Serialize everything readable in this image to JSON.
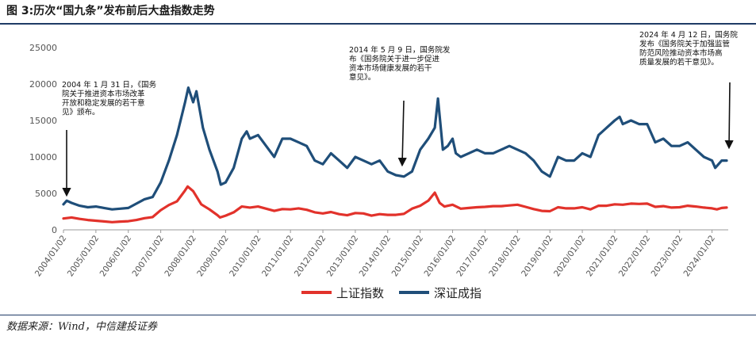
{
  "header": {
    "title": "图 3:历次“国九条”发布前后大盘指数走势"
  },
  "footer": {
    "source": "数据来源：Wind，中信建投证券"
  },
  "colors": {
    "sh": "#e2322b",
    "sz": "#1f4e79",
    "axis": "#999999",
    "text": "#555555",
    "header_rule": "#1f3b66"
  },
  "chart_data": {
    "type": "line",
    "title": "历次“国九条”发布前后大盘指数走势",
    "xlabel": "",
    "ylabel": "",
    "ylim": [
      0,
      25000
    ],
    "yticks": [
      0,
      5000,
      10000,
      15000,
      20000,
      25000
    ],
    "ytick_labels": [
      "0",
      "5000",
      "10000",
      "15000",
      "20000",
      "25000"
    ],
    "xlim": [
      2004.0,
      2024.5
    ],
    "xticks": [
      2004,
      2005,
      2006,
      2007,
      2008,
      2009,
      2010,
      2011,
      2012,
      2013,
      2014,
      2015,
      2016,
      2017,
      2018,
      2019,
      2020,
      2021,
      2022,
      2023,
      2024
    ],
    "xtick_labels": [
      "2004/01/02",
      "2005/01/02",
      "2006/01/02",
      "2007/01/02",
      "2008/01/02",
      "2009/01/02",
      "2010/01/02",
      "2011/01/02",
      "2012/01/02",
      "2013/01/02",
      "2014/01/02",
      "2015/01/02",
      "2016/01/02",
      "2017/01/02",
      "2018/01/02",
      "2019/01/02",
      "2020/01/02",
      "2021/01/02",
      "2022/01/02",
      "2023/01/02",
      "2024/01/02"
    ],
    "grid": false,
    "legend_position": "bottom",
    "series": [
      {
        "name": "上证指数",
        "x": [
          2004.0,
          2004.25,
          2004.5,
          2004.75,
          2005.0,
          2005.25,
          2005.5,
          2005.75,
          2006.0,
          2006.25,
          2006.5,
          2006.75,
          2007.0,
          2007.25,
          2007.5,
          2007.75,
          2007.83,
          2008.0,
          2008.25,
          2008.5,
          2008.75,
          2008.83,
          2009.0,
          2009.25,
          2009.5,
          2009.75,
          2010.0,
          2010.25,
          2010.5,
          2010.75,
          2011.0,
          2011.25,
          2011.5,
          2011.75,
          2012.0,
          2012.25,
          2012.5,
          2012.75,
          2013.0,
          2013.25,
          2013.5,
          2013.75,
          2014.0,
          2014.25,
          2014.5,
          2014.75,
          2015.0,
          2015.25,
          2015.45,
          2015.6,
          2015.75,
          2016.0,
          2016.25,
          2016.5,
          2016.75,
          2017.0,
          2017.25,
          2017.5,
          2017.75,
          2018.0,
          2018.25,
          2018.5,
          2018.75,
          2019.0,
          2019.25,
          2019.5,
          2019.75,
          2020.0,
          2020.25,
          2020.5,
          2020.75,
          2021.0,
          2021.25,
          2021.5,
          2021.75,
          2022.0,
          2022.25,
          2022.5,
          2022.75,
          2023.0,
          2023.25,
          2023.5,
          2023.75,
          2024.0,
          2024.15,
          2024.3,
          2024.45
        ],
        "values": [
          1550,
          1700,
          1500,
          1350,
          1250,
          1150,
          1050,
          1130,
          1180,
          1350,
          1600,
          1750,
          2700,
          3400,
          3900,
          5400,
          5950,
          5300,
          3500,
          2800,
          2000,
          1700,
          1950,
          2400,
          3200,
          3050,
          3200,
          2900,
          2600,
          2850,
          2800,
          2950,
          2750,
          2400,
          2250,
          2450,
          2150,
          2000,
          2300,
          2250,
          1950,
          2150,
          2050,
          2050,
          2200,
          2900,
          3300,
          4000,
          5100,
          3700,
          3200,
          3450,
          2900,
          3000,
          3100,
          3150,
          3250,
          3250,
          3350,
          3450,
          3150,
          2850,
          2600,
          2550,
          3100,
          2950,
          2950,
          3100,
          2800,
          3300,
          3300,
          3500,
          3450,
          3600,
          3550,
          3600,
          3150,
          3250,
          3050,
          3100,
          3300,
          3200,
          3050,
          2950,
          2800,
          3000,
          3050
        ]
      },
      {
        "name": "深证成指",
        "x": [
          2004.0,
          2004.1,
          2004.25,
          2004.5,
          2004.75,
          2005.0,
          2005.25,
          2005.5,
          2005.75,
          2006.0,
          2006.25,
          2006.5,
          2006.75,
          2007.0,
          2007.25,
          2007.5,
          2007.75,
          2007.85,
          2008.0,
          2008.1,
          2008.3,
          2008.5,
          2008.75,
          2008.85,
          2009.0,
          2009.25,
          2009.5,
          2009.65,
          2009.75,
          2010.0,
          2010.25,
          2010.5,
          2010.75,
          2011.0,
          2011.25,
          2011.5,
          2011.75,
          2012.0,
          2012.25,
          2012.5,
          2012.75,
          2013.0,
          2013.25,
          2013.5,
          2013.75,
          2014.0,
          2014.25,
          2014.5,
          2014.75,
          2015.0,
          2015.25,
          2015.45,
          2015.55,
          2015.7,
          2015.85,
          2016.0,
          2016.1,
          2016.25,
          2016.5,
          2016.75,
          2017.0,
          2017.25,
          2017.5,
          2017.75,
          2018.0,
          2018.25,
          2018.5,
          2018.75,
          2019.0,
          2019.25,
          2019.5,
          2019.75,
          2020.0,
          2020.25,
          2020.5,
          2020.75,
          2021.0,
          2021.15,
          2021.25,
          2021.5,
          2021.75,
          2022.0,
          2022.25,
          2022.5,
          2022.75,
          2023.0,
          2023.25,
          2023.5,
          2023.75,
          2024.0,
          2024.1,
          2024.2,
          2024.3,
          2024.45
        ],
        "values": [
          3500,
          4000,
          3700,
          3300,
          3100,
          3200,
          3000,
          2800,
          2900,
          3000,
          3600,
          4200,
          4500,
          6500,
          9500,
          13000,
          17500,
          19500,
          17500,
          19000,
          14000,
          11000,
          8000,
          6200,
          6500,
          8500,
          12500,
          13500,
          12500,
          13000,
          11500,
          10000,
          12500,
          12500,
          12000,
          11500,
          9500,
          9000,
          10500,
          9500,
          8500,
          10000,
          9500,
          9000,
          9500,
          8000,
          7500,
          7300,
          8000,
          11000,
          12500,
          14000,
          18000,
          11000,
          11500,
          12500,
          10500,
          10000,
          10500,
          11000,
          10500,
          10500,
          11000,
          11500,
          11000,
          10500,
          9500,
          8000,
          7300,
          10000,
          9500,
          9500,
          10500,
          10000,
          13000,
          14000,
          15000,
          15500,
          14500,
          15000,
          14500,
          14500,
          12000,
          12500,
          11500,
          11500,
          12000,
          11000,
          10000,
          9500,
          8500,
          9000,
          9500,
          9500
        ]
      }
    ]
  },
  "annotations": [
    {
      "id": "ann-2004",
      "lines": [
        "2004 年 1 月 31 日，《国务",
        "院关于推进资本市场改革",
        "开放和稳定发展的若干意",
        "见》颁布。"
      ]
    },
    {
      "id": "ann-2014",
      "lines": [
        "2014 年 5 月 9 日，国务院发",
        "布《国务院关于进一步促进",
        "资本市场健康发展的若干",
        "意见》。"
      ]
    },
    {
      "id": "ann-2024",
      "lines": [
        "2024 年 4 月 12 日，国务院",
        "发布《国务院关于加强监管",
        "防范风险推动资本市场高",
        "质量发展的若干意见》。"
      ]
    }
  ]
}
